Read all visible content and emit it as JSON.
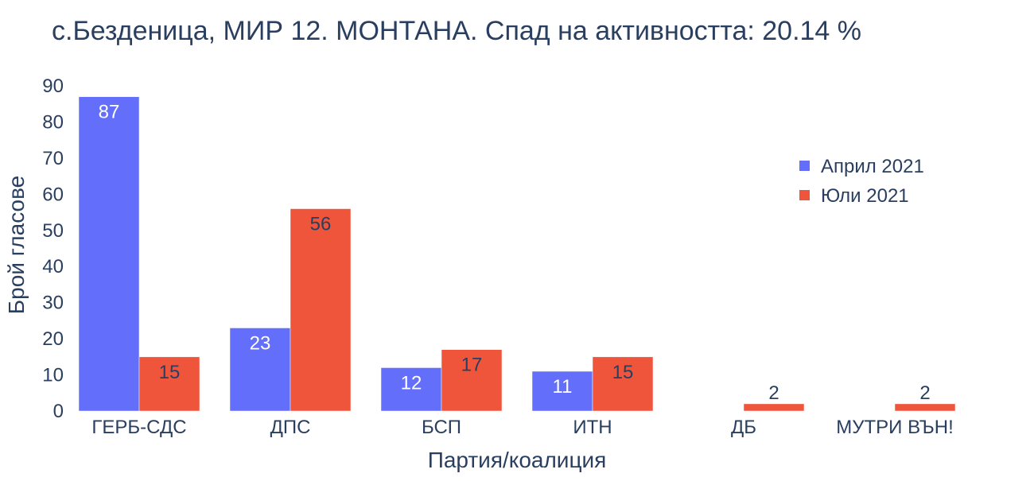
{
  "chart_data": {
    "type": "bar",
    "title": "с.Безденица, МИР 12. МОНТАНА. Спад на активността: 20.14 %",
    "xlabel": "Партия/коалиция",
    "ylabel": "Брой гласове",
    "ylim": [
      0,
      90
    ],
    "yticks": [
      0,
      10,
      20,
      30,
      40,
      50,
      60,
      70,
      80,
      90
    ],
    "categories": [
      "ГЕРБ-СДС",
      "ДПС",
      "БСП",
      "ИТН",
      "ДБ",
      "МУТРИ ВЪН!"
    ],
    "series": [
      {
        "name": "Април 2021",
        "color": "#636efa",
        "label_color": "#ffffff",
        "values": [
          87,
          23,
          12,
          11,
          0,
          0
        ],
        "labels": [
          "87",
          "23",
          "12",
          "11",
          "",
          ""
        ]
      },
      {
        "name": "Юли 2021",
        "color": "#ef553b",
        "label_color": "#2a3f5f",
        "values": [
          15,
          56,
          17,
          15,
          2,
          2
        ],
        "labels": [
          "15",
          "56",
          "17",
          "15",
          "2",
          "2"
        ]
      }
    ],
    "legend_position": "top-right",
    "grid": false
  }
}
